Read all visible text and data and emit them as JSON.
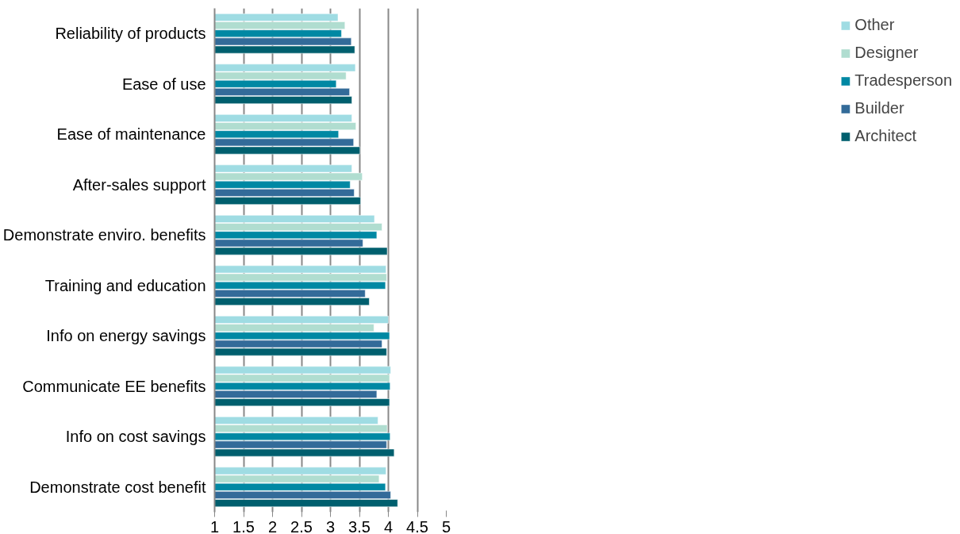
{
  "chart_data": {
    "type": "bar",
    "orientation": "horizontal",
    "categories": [
      "Reliability of products",
      "Ease of use",
      "Ease of maintenance",
      "After-sales support",
      "Demonstrate enviro. benefits",
      "Training and education",
      "Info on energy savings",
      "Communicate EE benefits",
      "Info on cost savings",
      "Demonstrate cost benefit"
    ],
    "series": [
      {
        "name": "Other",
        "color": "#9fdce3",
        "values": [
          3.13,
          3.43,
          3.37,
          3.37,
          3.76,
          3.96,
          4.0,
          4.04,
          3.82,
          3.96
        ]
      },
      {
        "name": "Designer",
        "color": "#b0ddd0",
        "values": [
          3.25,
          3.27,
          3.44,
          3.55,
          3.89,
          3.97,
          3.75,
          4.02,
          3.98,
          3.84
        ]
      },
      {
        "name": "Tradesperson",
        "color": "#0088a3",
        "values": [
          3.19,
          3.1,
          3.14,
          3.34,
          3.8,
          3.95,
          4.02,
          4.03,
          4.03,
          3.95
        ]
      },
      {
        "name": "Builder",
        "color": "#336b99",
        "values": [
          3.36,
          3.33,
          3.4,
          3.41,
          3.56,
          3.6,
          3.89,
          3.8,
          3.97,
          4.04
        ]
      },
      {
        "name": "Architect",
        "color": "#005f6e",
        "values": [
          3.42,
          3.37,
          3.51,
          3.52,
          3.98,
          3.67,
          3.97,
          4.02,
          4.1,
          4.16
        ]
      }
    ],
    "xlim": [
      1,
      5
    ],
    "xticks": [
      1,
      1.5,
      2,
      2.5,
      3,
      3.5,
      4,
      4.5,
      5
    ],
    "grid": "x",
    "legend": "right"
  }
}
